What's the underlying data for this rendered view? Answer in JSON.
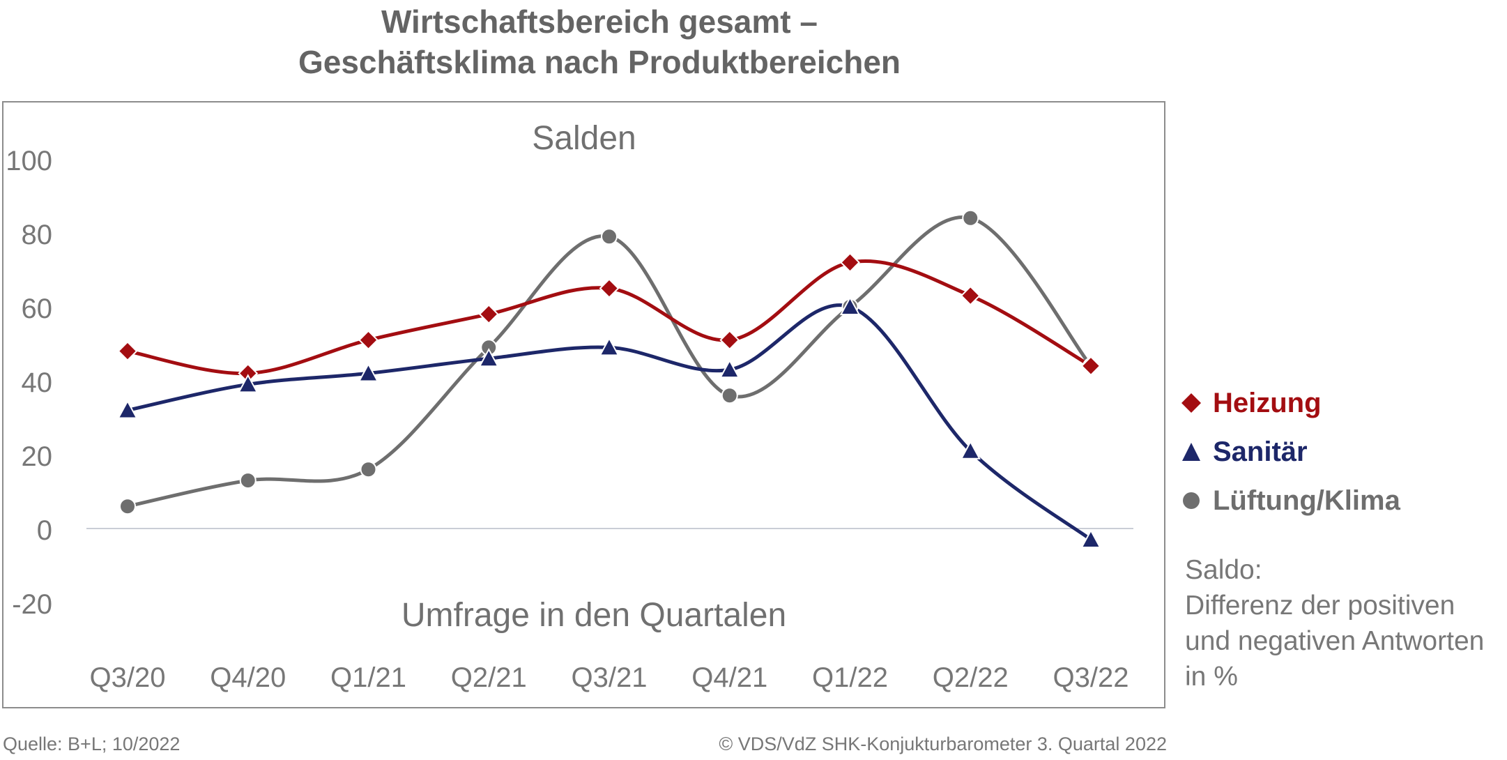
{
  "title_line1": "Wirtschaftsbereich gesamt –",
  "title_line2": "Geschäftsklima nach Produktbereichen",
  "chart_data": {
    "type": "line",
    "title": "Wirtschaftsbereich gesamt – Geschäftsklima nach Produktbereichen",
    "subtitle": "Salden",
    "xlabel": "Umfrage in den Quartalen",
    "ylabel": "",
    "categories": [
      "Q3/20",
      "Q4/20",
      "Q1/21",
      "Q2/21",
      "Q3/21",
      "Q4/21",
      "Q1/22",
      "Q2/22",
      "Q3/22"
    ],
    "y_ticks": [
      "100",
      "80",
      "60",
      "40",
      "20",
      "0",
      "-20"
    ],
    "ylim": [
      -20,
      100
    ],
    "grid": false,
    "smooth": true,
    "legend_position": "right",
    "series": [
      {
        "name": "Heizung",
        "marker": "diamond",
        "color": "#a30d11",
        "values": [
          48,
          42,
          51,
          58,
          65,
          51,
          72,
          63,
          44
        ]
      },
      {
        "name": "Sanitär",
        "marker": "triangle",
        "color": "#1d2769",
        "values": [
          32,
          39,
          42,
          46,
          49,
          43,
          60,
          21,
          -3
        ]
      },
      {
        "name": "Lüftung/Klima",
        "marker": "circle",
        "color": "#6e6e6e",
        "values": [
          6,
          13,
          16,
          49,
          79,
          36,
          60,
          84,
          44
        ]
      }
    ]
  },
  "legend": {
    "heizung": "Heizung",
    "sanitaer": "Sanitär",
    "lueftung": "Lüftung/Klima"
  },
  "note": {
    "line1": "Saldo:",
    "line2": "Differenz der positiven",
    "line3": "und negativen Antworten",
    "line4": "in %"
  },
  "footer": {
    "source": "Quelle: B+L; 10/2022",
    "copyright": "© VDS/VdZ SHK-Konjukturbarometer 3. Quartal 2022"
  }
}
